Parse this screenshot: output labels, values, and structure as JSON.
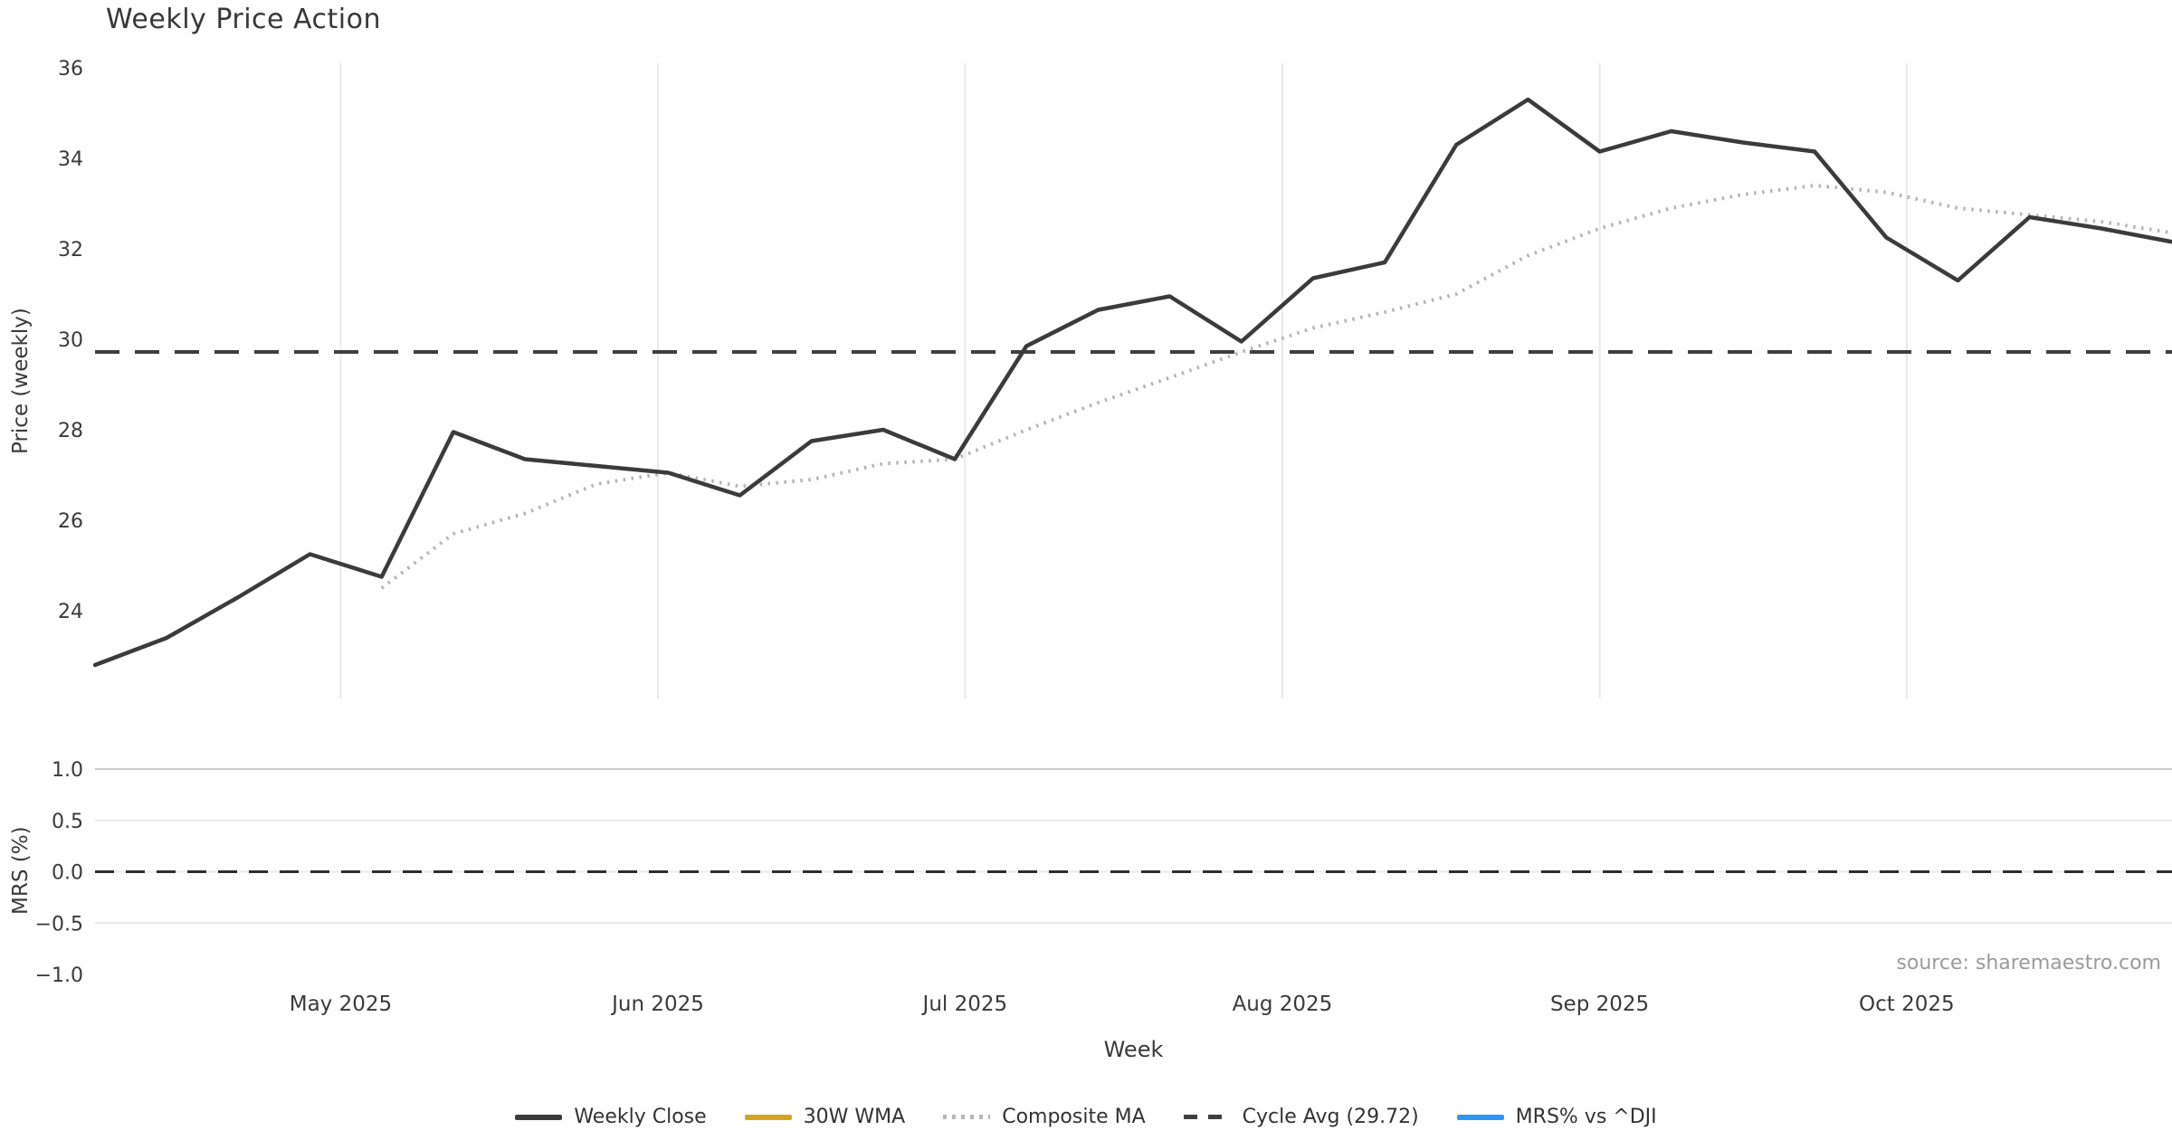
{
  "title": "Weekly Price Action",
  "source_note": "source: sharemaestro.com",
  "axes": {
    "price_label": "Price (weekly)",
    "mrs_label": "MRS (%)",
    "x_label": "Week"
  },
  "colors": {
    "weekly_close": "#3b3b3b",
    "wma_30": "#d6a51f",
    "composite_ma": "#b5b5b5",
    "cycle_avg": "#3f3f3f",
    "mrs_line": "#2d96f2",
    "grid": "#e9e9e9",
    "grid_strong": "#c9c9c9",
    "text": "#3a3a3a",
    "muted_text": "#9b9b9b"
  },
  "legend": {
    "items": [
      {
        "label": "Weekly Close"
      },
      {
        "label": "30W WMA"
      },
      {
        "label": "Composite MA"
      },
      {
        "label": "Cycle Avg (29.72)"
      },
      {
        "label": "MRS% vs ^DJI"
      }
    ]
  },
  "chart_data": [
    {
      "type": "line",
      "title": "Weekly Price Action",
      "xlabel": "Week",
      "ylabel": "Price (weekly)",
      "x": [
        "2025-04-07",
        "2025-04-14",
        "2025-04-21",
        "2025-04-28",
        "2025-05-05",
        "2025-05-12",
        "2025-05-19",
        "2025-05-26",
        "2025-06-02",
        "2025-06-09",
        "2025-06-16",
        "2025-06-23",
        "2025-06-30",
        "2025-07-07",
        "2025-07-14",
        "2025-07-21",
        "2025-07-28",
        "2025-08-04",
        "2025-08-11",
        "2025-08-18",
        "2025-08-25",
        "2025-09-01",
        "2025-09-08",
        "2025-09-15",
        "2025-09-22",
        "2025-09-29",
        "2025-10-06",
        "2025-10-13",
        "2025-10-20",
        "2025-10-27"
      ],
      "series": [
        {
          "name": "Weekly Close",
          "style": "solid",
          "values": [
            22.8,
            23.4,
            24.3,
            25.25,
            24.75,
            27.95,
            27.35,
            27.2,
            27.05,
            26.55,
            27.75,
            28.0,
            27.35,
            29.85,
            30.65,
            30.95,
            29.95,
            31.35,
            31.7,
            34.3,
            35.3,
            34.15,
            34.6,
            34.35,
            34.15,
            32.25,
            31.3,
            32.7,
            32.45,
            32.15
          ]
        },
        {
          "name": "30W WMA",
          "style": "solid",
          "values": []
        },
        {
          "name": "Composite MA",
          "style": "dotted",
          "values": [
            null,
            null,
            null,
            null,
            24.5,
            25.7,
            26.15,
            26.8,
            27.05,
            26.75,
            26.9,
            27.25,
            27.35,
            28.0,
            28.6,
            29.15,
            29.72,
            30.25,
            30.6,
            31.0,
            31.85,
            32.45,
            32.9,
            33.2,
            33.4,
            33.25,
            32.9,
            32.75,
            32.6,
            32.35
          ]
        },
        {
          "name": "Cycle Avg (29.72)",
          "style": "dashed",
          "constant": 29.72
        }
      ],
      "yticks": [
        {
          "label": "36",
          "value": 36
        },
        {
          "label": "34",
          "value": 34
        },
        {
          "label": "32",
          "value": 32
        },
        {
          "label": "30",
          "value": 30
        },
        {
          "label": "28",
          "value": 28
        },
        {
          "label": "26",
          "value": 26
        },
        {
          "label": "24",
          "value": 24
        }
      ],
      "ylim": [
        22.05,
        36.1
      ],
      "grid": "vertical-month-lines",
      "legend_position": "bottom-center",
      "month_ticks": [
        {
          "label": "May 2025",
          "day": 24
        },
        {
          "label": "Jun 2025",
          "day": 55
        },
        {
          "label": "Jul 2025",
          "day": 85
        },
        {
          "label": "Aug 2025",
          "day": 116
        },
        {
          "label": "Sep 2025",
          "day": 147
        },
        {
          "label": "Oct 2025",
          "day": 177
        }
      ]
    },
    {
      "type": "line",
      "ylabel": "MRS (%)",
      "series": [
        {
          "name": "MRS% vs ^DJI",
          "style": "solid",
          "values": []
        },
        {
          "name": "Zero line",
          "style": "dashed",
          "constant": 0.0
        }
      ],
      "yticks": [
        {
          "label": "1.0",
          "value": 1.0
        },
        {
          "label": "0.5",
          "value": 0.5
        },
        {
          "label": "0.0",
          "value": 0.0
        },
        {
          "label": "−0.5",
          "value": -0.5
        },
        {
          "label": "−1.0",
          "value": -1.0
        }
      ],
      "ylim": [
        -1.02,
        1.02
      ],
      "grid": "horizontal"
    }
  ]
}
